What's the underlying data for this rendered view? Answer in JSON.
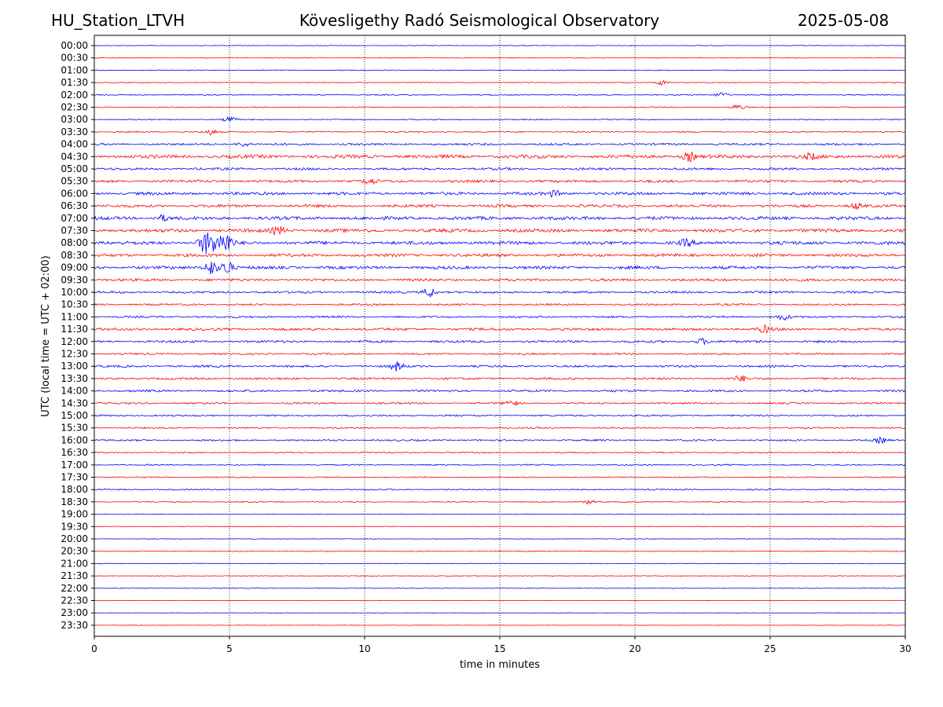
{
  "header": {
    "station": "HU_Station_LTVH",
    "title": "Kövesligethy Radó Seismological Observatory",
    "date": "2025-05-08"
  },
  "chart_data": {
    "type": "line",
    "xlabel": "time in minutes",
    "ylabel": "UTC (local time = UTC + 02:00)",
    "xlim": [
      0,
      30
    ],
    "xticks": [
      0,
      5,
      10,
      15,
      20,
      25,
      30
    ],
    "grid": "vertical dotted lines at x = 5, 10, 15, 20, 25",
    "colors": {
      "even_rows": "#0000ff",
      "odd_rows": "#ff0000"
    },
    "rows": [
      "00:00",
      "00:30",
      "01:00",
      "01:30",
      "02:00",
      "02:30",
      "03:00",
      "03:30",
      "04:00",
      "04:30",
      "05:00",
      "05:30",
      "06:00",
      "06:30",
      "07:00",
      "07:30",
      "08:00",
      "08:30",
      "09:00",
      "09:30",
      "10:00",
      "10:30",
      "11:00",
      "11:30",
      "12:00",
      "12:30",
      "13:00",
      "13:30",
      "14:00",
      "14:30",
      "15:00",
      "15:30",
      "16:00",
      "16:30",
      "17:00",
      "17:30",
      "18:00",
      "18:30",
      "19:00",
      "19:30",
      "20:00",
      "20:30",
      "21:00",
      "21:30",
      "22:00",
      "22:30",
      "23:00",
      "23:30"
    ],
    "amplitude_level": [
      0.3,
      0.3,
      0.4,
      0.4,
      0.5,
      0.5,
      0.5,
      0.6,
      1.0,
      1.6,
      1.1,
      1.2,
      1.4,
      1.3,
      1.6,
      1.6,
      1.6,
      1.4,
      1.4,
      1.2,
      1.0,
      0.9,
      0.9,
      1.2,
      1.1,
      0.8,
      1.0,
      1.0,
      1.0,
      0.8,
      0.8,
      0.7,
      0.8,
      0.6,
      0.6,
      0.5,
      0.6,
      0.5,
      0.3,
      0.3,
      0.3,
      0.4,
      0.3,
      0.3,
      0.3,
      0.2,
      0.2,
      0.2
    ],
    "events": [
      {
        "row": "01:30",
        "minute": 21.0,
        "strength": 1.5
      },
      {
        "row": "02:00",
        "minute": 23.2,
        "strength": 1.5
      },
      {
        "row": "02:30",
        "minute": 23.8,
        "strength": 1.5
      },
      {
        "row": "03:00",
        "minute": 5.0,
        "strength": 1.5
      },
      {
        "row": "03:30",
        "minute": 4.3,
        "strength": 1.5
      },
      {
        "row": "04:00",
        "minute": 5.5,
        "strength": 1.3
      },
      {
        "row": "04:30",
        "minute": 22.0,
        "strength": 2.5
      },
      {
        "row": "04:30",
        "minute": 26.5,
        "strength": 1.5
      },
      {
        "row": "05:30",
        "minute": 10.2,
        "strength": 1.6
      },
      {
        "row": "06:00",
        "minute": 17.0,
        "strength": 1.5
      },
      {
        "row": "06:30",
        "minute": 28.2,
        "strength": 1.6
      },
      {
        "row": "07:00",
        "minute": 2.5,
        "strength": 1.5
      },
      {
        "row": "07:30",
        "minute": 6.8,
        "strength": 2.2
      },
      {
        "row": "08:00",
        "minute": 4.1,
        "strength": 6.0
      },
      {
        "row": "08:00",
        "minute": 4.5,
        "strength": 5.0
      },
      {
        "row": "08:00",
        "minute": 4.9,
        "strength": 5.0
      },
      {
        "row": "08:00",
        "minute": 21.9,
        "strength": 1.8
      },
      {
        "row": "09:00",
        "minute": 4.3,
        "strength": 4.5
      },
      {
        "row": "09:00",
        "minute": 4.9,
        "strength": 4.0
      },
      {
        "row": "10:00",
        "minute": 12.4,
        "strength": 3.0
      },
      {
        "row": "11:00",
        "minute": 25.5,
        "strength": 1.6
      },
      {
        "row": "11:30",
        "minute": 24.8,
        "strength": 1.8
      },
      {
        "row": "12:00",
        "minute": 22.5,
        "strength": 1.8
      },
      {
        "row": "13:00",
        "minute": 11.2,
        "strength": 2.5
      },
      {
        "row": "13:30",
        "minute": 23.9,
        "strength": 1.6
      },
      {
        "row": "14:30",
        "minute": 15.4,
        "strength": 1.8
      },
      {
        "row": "16:00",
        "minute": 29.1,
        "strength": 1.4
      },
      {
        "row": "18:30",
        "minute": 18.3,
        "strength": 1.3
      }
    ]
  }
}
